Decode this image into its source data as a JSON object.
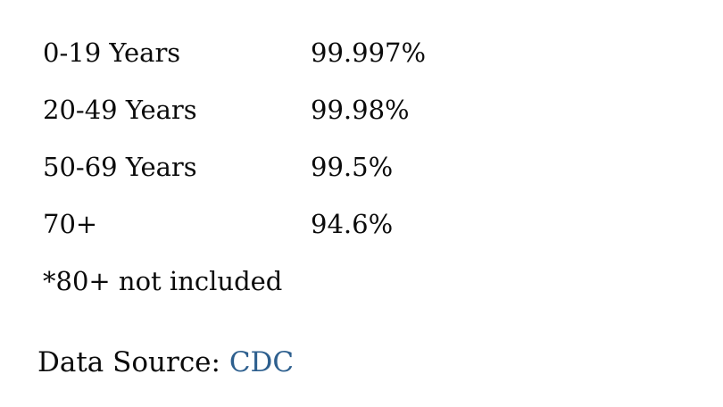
{
  "chart_data": {
    "type": "table",
    "rows": [
      {
        "label": "0-19 Years",
        "value": "99.997%"
      },
      {
        "label": "20-49 Years",
        "value": "99.98%"
      },
      {
        "label": "50-69 Years",
        "value": "99.5%"
      },
      {
        "label": "70+",
        "value": "94.6%"
      }
    ],
    "categories": [
      "0-19 Years",
      "20-49 Years",
      "50-69 Years",
      "70+"
    ],
    "values_percent": [
      99.997,
      99.98,
      99.5,
      94.6
    ],
    "note": "*80+ not included",
    "legend_position": "none",
    "grid": false
  },
  "footer": {
    "source_label": "Data Source: ",
    "source_link": "CDC"
  },
  "colors": {
    "text": "#0b0b0b",
    "link": "#2d5f8e",
    "background": "#ffffff"
  }
}
